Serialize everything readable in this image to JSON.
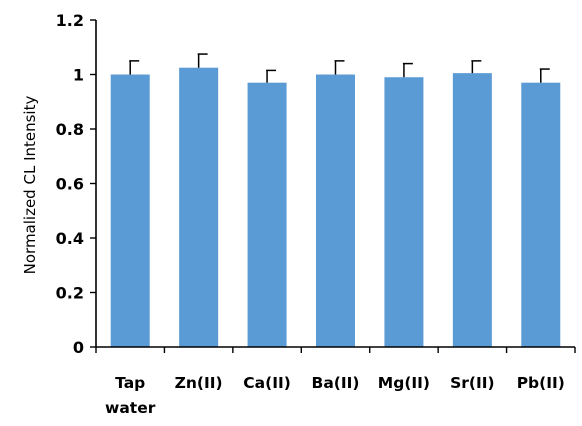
{
  "chart_data": {
    "type": "bar",
    "title": "",
    "xlabel": "",
    "ylabel": "Normalized CL Intensity",
    "categories": [
      [
        "Tap",
        "water"
      ],
      [
        "Zn(II)"
      ],
      [
        "Ca(II)"
      ],
      [
        "Ba(II)"
      ],
      [
        "Mg(II)"
      ],
      [
        "Sr(II)"
      ],
      [
        "Pb(II)"
      ]
    ],
    "values": [
      1.0,
      1.025,
      0.97,
      1.0,
      0.99,
      1.005,
      0.97
    ],
    "errors": [
      0.05,
      0.05,
      0.045,
      0.05,
      0.05,
      0.045,
      0.05
    ],
    "ylim": [
      0,
      1.2
    ],
    "yticks": [
      "0",
      "0.2",
      "0.4",
      "0.6",
      "0.8",
      "1",
      "1.2"
    ],
    "grid": false,
    "bar_color": "#5b9bd5"
  }
}
